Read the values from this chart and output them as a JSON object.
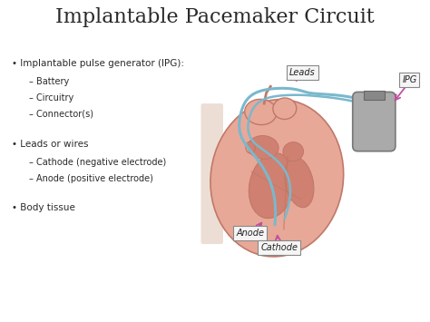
{
  "title": "Implantable Pacemaker Circuit",
  "title_fontsize": 16,
  "background_color": "#ffffff",
  "text_color": "#2a2a2a",
  "bullet1_header": "Implantable pulse generator (IPG):",
  "bullet1_sub": [
    "Battery",
    "Circuitry",
    "Connector(s)"
  ],
  "bullet2_header": "Leads or wires",
  "bullet2_sub": [
    "Cathode (negative electrode)",
    "Anode (positive electrode)"
  ],
  "bullet3_header": "Body tissue",
  "label_leads": "Leads",
  "label_ipg": "IPG",
  "label_anode": "Anode",
  "label_cathode": "Cathode",
  "heart_outer_color": "#e8a898",
  "heart_inner_color": "#d08070",
  "heart_chamber_color": "#c06858",
  "heart_outline_color": "#c07868",
  "spine_color": "#e0c8b8",
  "lead_wire_color": "#7ab8cc",
  "arrow_color": "#c050a0",
  "ipg_color": "#aaaaaa",
  "ipg_top_color": "#888888",
  "label_box_color": "#f5f5f5",
  "label_box_edge": "#888888",
  "xlim": [
    0,
    10
  ],
  "ylim": [
    0,
    7.5
  ]
}
